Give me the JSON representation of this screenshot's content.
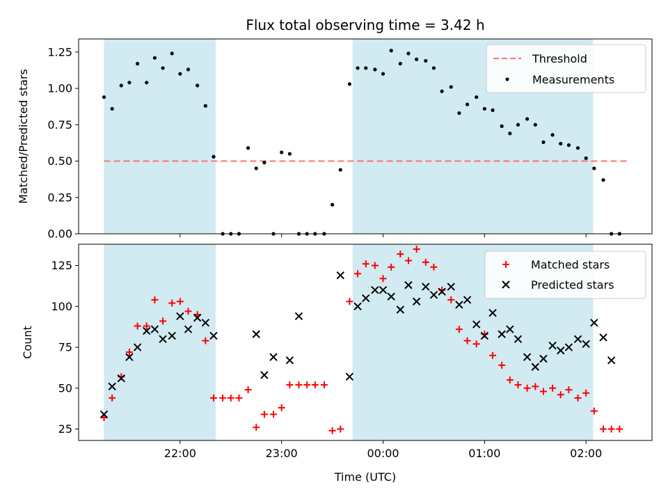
{
  "chart_data": {
    "type": "scatter",
    "title": "Flux total observing time = 3.42 h",
    "xlabel": "Time (UTC)",
    "x_ticks": [
      "22:00",
      "23:00",
      "00:00",
      "01:00",
      "02:00"
    ],
    "x_tick_hours": [
      22,
      23,
      24,
      25,
      26
    ],
    "x_range_hours": [
      21.0,
      26.65
    ],
    "shaded_spans_hours": [
      [
        21.25,
        22.35
      ],
      [
        23.7,
        26.07
      ]
    ],
    "shade_color": "#add8e6",
    "panels": [
      {
        "ylabel": "Matched/Predicted stars",
        "ylim": [
          0,
          1.34
        ],
        "y_ticks": [
          "0.00",
          "0.25",
          "0.50",
          "0.75",
          "1.00",
          "1.25"
        ],
        "y_tick_values": [
          0,
          0.25,
          0.5,
          0.75,
          1.0,
          1.25
        ],
        "threshold": {
          "name": "Threshold",
          "value": 0.5,
          "x_range_hours": [
            21.25,
            26.42
          ],
          "color": "#ff7070"
        },
        "legend": [
          "Threshold",
          "Measurements"
        ],
        "legend_position": "top-right",
        "series": [
          {
            "name": "Measurements",
            "marker": "dot",
            "color": "#000000",
            "points": [
              [
                21.25,
                0.94
              ],
              [
                21.33,
                0.86
              ],
              [
                21.42,
                1.02
              ],
              [
                21.5,
                1.04
              ],
              [
                21.58,
                1.17
              ],
              [
                21.67,
                1.04
              ],
              [
                21.75,
                1.21
              ],
              [
                21.83,
                1.14
              ],
              [
                21.92,
                1.24
              ],
              [
                22.0,
                1.1
              ],
              [
                22.08,
                1.13
              ],
              [
                22.17,
                1.02
              ],
              [
                22.25,
                0.88
              ],
              [
                22.33,
                0.53
              ],
              [
                22.42,
                0.0
              ],
              [
                22.5,
                0.0
              ],
              [
                22.58,
                0.0
              ],
              [
                22.67,
                0.59
              ],
              [
                22.75,
                0.45
              ],
              [
                22.83,
                0.49
              ],
              [
                22.92,
                0.0
              ],
              [
                23.0,
                0.56
              ],
              [
                23.08,
                0.55
              ],
              [
                23.17,
                0.0
              ],
              [
                23.25,
                0.0
              ],
              [
                23.33,
                0.0
              ],
              [
                23.42,
                0.0
              ],
              [
                23.5,
                0.2
              ],
              [
                23.58,
                0.44
              ],
              [
                23.67,
                1.03
              ],
              [
                23.75,
                1.14
              ],
              [
                23.83,
                1.14
              ],
              [
                23.92,
                1.13
              ],
              [
                24.0,
                1.1
              ],
              [
                24.08,
                1.26
              ],
              [
                24.17,
                1.17
              ],
              [
                24.25,
                1.24
              ],
              [
                24.33,
                1.2
              ],
              [
                24.42,
                1.19
              ],
              [
                24.5,
                1.14
              ],
              [
                24.58,
                0.98
              ],
              [
                24.67,
                1.01
              ],
              [
                24.75,
                0.83
              ],
              [
                24.83,
                0.89
              ],
              [
                24.92,
                0.94
              ],
              [
                25.0,
                0.86
              ],
              [
                25.08,
                0.85
              ],
              [
                25.17,
                0.74
              ],
              [
                25.25,
                0.69
              ],
              [
                25.33,
                0.75
              ],
              [
                25.42,
                0.79
              ],
              [
                25.5,
                0.75
              ],
              [
                25.58,
                0.63
              ],
              [
                25.67,
                0.68
              ],
              [
                25.75,
                0.62
              ],
              [
                25.83,
                0.61
              ],
              [
                25.92,
                0.59
              ],
              [
                26.0,
                0.52
              ],
              [
                26.08,
                0.45
              ],
              [
                26.17,
                0.37
              ],
              [
                26.25,
                0.0
              ],
              [
                26.33,
                0.0
              ]
            ]
          }
        ]
      },
      {
        "ylabel": "Count",
        "ylim": [
          18,
          138
        ],
        "y_ticks": [
          "25",
          "50",
          "75",
          "100",
          "125"
        ],
        "y_tick_values": [
          25,
          50,
          75,
          100,
          125
        ],
        "legend": [
          "Matched stars",
          "Predicted stars"
        ],
        "legend_position": "top-right",
        "series": [
          {
            "name": "Matched stars",
            "marker": "plus",
            "color": "#ff0000",
            "points": [
              [
                21.25,
                32
              ],
              [
                21.33,
                44
              ],
              [
                21.42,
                57
              ],
              [
                21.5,
                72
              ],
              [
                21.58,
                88
              ],
              [
                21.67,
                88
              ],
              [
                21.75,
                104
              ],
              [
                21.83,
                91
              ],
              [
                21.92,
                102
              ],
              [
                22.0,
                103
              ],
              [
                22.08,
                97
              ],
              [
                22.17,
                95
              ],
              [
                22.25,
                79
              ],
              [
                22.33,
                44
              ],
              [
                22.42,
                44
              ],
              [
                22.5,
                44
              ],
              [
                22.58,
                44
              ],
              [
                22.67,
                49
              ],
              [
                22.75,
                26
              ],
              [
                22.83,
                34
              ],
              [
                22.92,
                34
              ],
              [
                23.0,
                38
              ],
              [
                23.08,
                52
              ],
              [
                23.17,
                52
              ],
              [
                23.25,
                52
              ],
              [
                23.33,
                52
              ],
              [
                23.42,
                52
              ],
              [
                23.5,
                24
              ],
              [
                23.58,
                25
              ],
              [
                23.67,
                103
              ],
              [
                23.75,
                120
              ],
              [
                23.83,
                126
              ],
              [
                23.92,
                125
              ],
              [
                24.0,
                117
              ],
              [
                24.08,
                124
              ],
              [
                24.17,
                132
              ],
              [
                24.25,
                128
              ],
              [
                24.33,
                135
              ],
              [
                24.42,
                127
              ],
              [
                24.5,
                124
              ],
              [
                24.58,
                110
              ],
              [
                24.67,
                104
              ],
              [
                24.75,
                86
              ],
              [
                24.83,
                79
              ],
              [
                24.92,
                77
              ],
              [
                25.0,
                83
              ],
              [
                25.08,
                70
              ],
              [
                25.17,
                64
              ],
              [
                25.25,
                55
              ],
              [
                25.33,
                52
              ],
              [
                25.42,
                50
              ],
              [
                25.5,
                51
              ],
              [
                25.58,
                48
              ],
              [
                25.67,
                50
              ],
              [
                25.75,
                46
              ],
              [
                25.83,
                49
              ],
              [
                25.92,
                44
              ],
              [
                26.0,
                47
              ],
              [
                26.08,
                36
              ],
              [
                26.17,
                25
              ],
              [
                26.25,
                25
              ],
              [
                26.33,
                25
              ]
            ]
          },
          {
            "name": "Predicted stars",
            "marker": "x",
            "color": "#000000",
            "points": [
              [
                21.25,
                34
              ],
              [
                21.33,
                51
              ],
              [
                21.42,
                56
              ],
              [
                21.5,
                69
              ],
              [
                21.58,
                75
              ],
              [
                21.67,
                85
              ],
              [
                21.75,
                86
              ],
              [
                21.83,
                80
              ],
              [
                21.92,
                82
              ],
              [
                22.0,
                94
              ],
              [
                22.08,
                86
              ],
              [
                22.17,
                93
              ],
              [
                22.25,
                90
              ],
              [
                22.33,
                82
              ],
              [
                22.75,
                83
              ],
              [
                22.83,
                58
              ],
              [
                22.92,
                69
              ],
              [
                23.08,
                67
              ],
              [
                23.17,
                94
              ],
              [
                23.58,
                119
              ],
              [
                23.67,
                57
              ],
              [
                23.75,
                100
              ],
              [
                23.83,
                105
              ],
              [
                23.92,
                110
              ],
              [
                24.0,
                110
              ],
              [
                24.08,
                106
              ],
              [
                24.17,
                98
              ],
              [
                24.25,
                113
              ],
              [
                24.33,
                103
              ],
              [
                24.42,
                112
              ],
              [
                24.5,
                107
              ],
              [
                24.58,
                109
              ],
              [
                24.67,
                112
              ],
              [
                24.75,
                101
              ],
              [
                24.83,
                104
              ],
              [
                24.92,
                89
              ],
              [
                25.0,
                82
              ],
              [
                25.08,
                96
              ],
              [
                25.17,
                83
              ],
              [
                25.25,
                86
              ],
              [
                25.33,
                80
              ],
              [
                25.42,
                69
              ],
              [
                25.5,
                63
              ],
              [
                25.58,
                68
              ],
              [
                25.67,
                76
              ],
              [
                25.75,
                73
              ],
              [
                25.83,
                75
              ],
              [
                25.92,
                80
              ],
              [
                26.0,
                77
              ],
              [
                26.08,
                90
              ],
              [
                26.17,
                81
              ],
              [
                26.25,
                67
              ]
            ]
          }
        ]
      }
    ]
  }
}
